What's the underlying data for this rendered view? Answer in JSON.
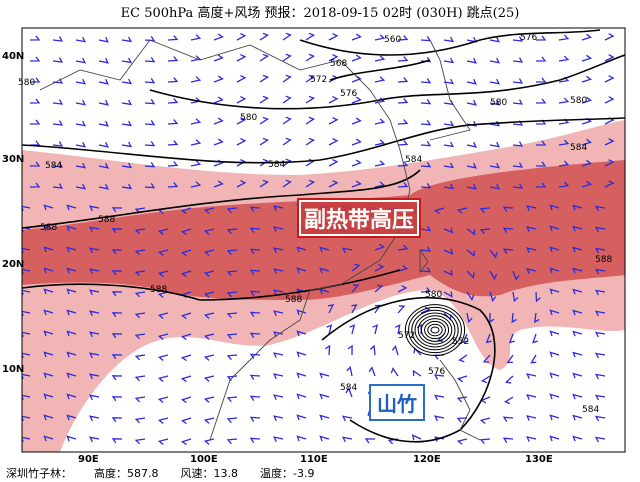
{
  "title": "EC 500hPa 高度+风场  预报：2018-09-15 02时 (030H) 跳点(25)",
  "axes": {
    "lat_labels": [
      "40N",
      "30N",
      "20N",
      "10N"
    ],
    "lon_labels": [
      "90E",
      "100E",
      "110E",
      "120E",
      "130E"
    ]
  },
  "contours": [
    "560",
    "568",
    "572",
    "576",
    "576",
    "580",
    "580",
    "580",
    "580",
    "584",
    "584",
    "584",
    "584",
    "588",
    "588",
    "588",
    "588",
    "588",
    "584",
    "584",
    "580",
    "572",
    "576",
    "552"
  ],
  "colors": {
    "band_584": "#f2b5b5",
    "band_588": "#d66060",
    "wind": "#2b2bdd",
    "contour": "#000000",
    "coast": "#333333"
  },
  "labels": {
    "subtropical_high": "副热带高压",
    "typhoon": "山竹"
  },
  "footer": {
    "station": "深圳竹子林：",
    "height": "高度：587.8",
    "wind": "风速：13.8",
    "temp": "温度：-3.9"
  }
}
